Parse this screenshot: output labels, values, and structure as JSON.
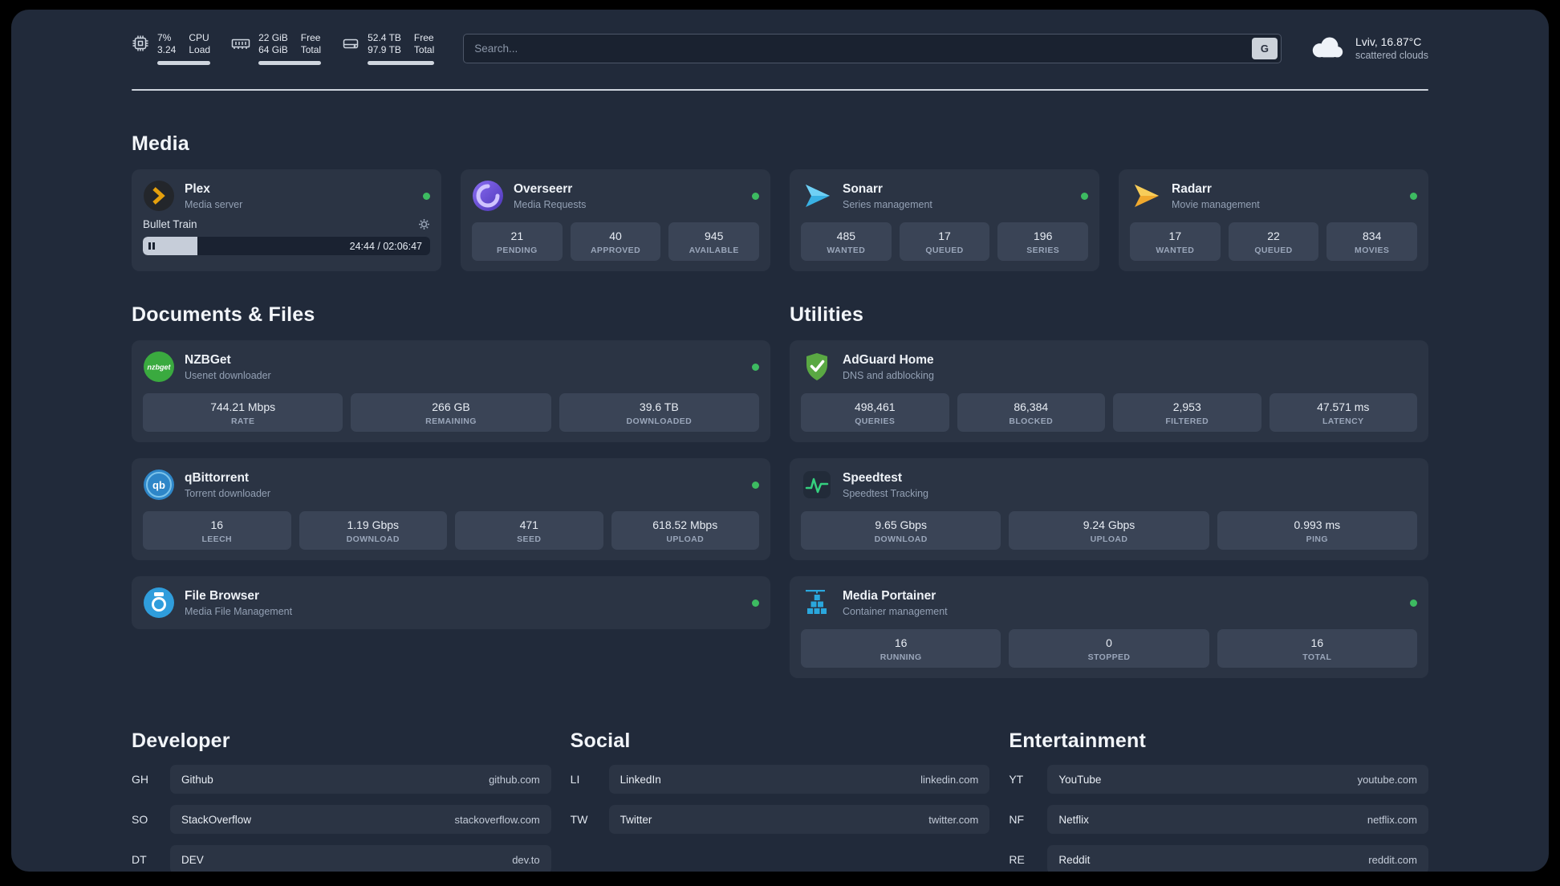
{
  "colors": {
    "background": "#212a3a",
    "card": "#2b3444",
    "tile": "#3a4456",
    "status_online": "#3dbb61",
    "plex_accent": "#e5a00d"
  },
  "topbar": {
    "cpu": {
      "icon": "cpu-icon",
      "value_top": "7%",
      "value_bottom": "3.24",
      "label_top": "CPU",
      "label_bottom": "Load"
    },
    "memory": {
      "icon": "memory-icon",
      "value_top": "22 GiB",
      "value_bottom": "64 GiB",
      "label_top": "Free",
      "label_bottom": "Total"
    },
    "disk": {
      "icon": "disk-icon",
      "value_top": "52.4 TB",
      "value_bottom": "97.9 TB",
      "label_top": "Free",
      "label_bottom": "Total"
    },
    "search": {
      "placeholder": "Search...",
      "shortcut": "G"
    },
    "weather": {
      "icon": "cloud-icon",
      "location": "Lviv, 16.87°C",
      "condition": "scattered clouds"
    }
  },
  "media": {
    "title": "Media",
    "plex": {
      "icon": "plex-icon",
      "name": "Plex",
      "subtitle": "Media server",
      "status": "online",
      "now_playing": "Bullet Train",
      "time": "24:44 / 02:06:47",
      "progress_percent": 19
    },
    "overseerr": {
      "icon": "overseerr-icon",
      "name": "Overseerr",
      "subtitle": "Media Requests",
      "status": "online",
      "stats": [
        {
          "value": "21",
          "label": "PENDING"
        },
        {
          "value": "40",
          "label": "APPROVED"
        },
        {
          "value": "945",
          "label": "AVAILABLE"
        }
      ]
    },
    "sonarr": {
      "icon": "sonarr-icon",
      "name": "Sonarr",
      "subtitle": "Series management",
      "status": "online",
      "stats": [
        {
          "value": "485",
          "label": "WANTED"
        },
        {
          "value": "17",
          "label": "QUEUED"
        },
        {
          "value": "196",
          "label": "SERIES"
        }
      ]
    },
    "radarr": {
      "icon": "radarr-icon",
      "name": "Radarr",
      "subtitle": "Movie management",
      "status": "online",
      "stats": [
        {
          "value": "17",
          "label": "WANTED"
        },
        {
          "value": "22",
          "label": "QUEUED"
        },
        {
          "value": "834",
          "label": "MOVIES"
        }
      ]
    }
  },
  "documents": {
    "title": "Documents & Files",
    "nzbget": {
      "icon": "nzbget-icon",
      "name": "NZBGet",
      "subtitle": "Usenet downloader",
      "status": "online",
      "stats": [
        {
          "value": "744.21 Mbps",
          "label": "RATE"
        },
        {
          "value": "266 GB",
          "label": "REMAINING"
        },
        {
          "value": "39.6 TB",
          "label": "DOWNLOADED"
        }
      ]
    },
    "qbittorrent": {
      "icon": "qbittorrent-icon",
      "name": "qBittorrent",
      "subtitle": "Torrent downloader",
      "status": "online",
      "stats": [
        {
          "value": "16",
          "label": "LEECH"
        },
        {
          "value": "1.19 Gbps",
          "label": "DOWNLOAD"
        },
        {
          "value": "471",
          "label": "SEED"
        },
        {
          "value": "618.52 Mbps",
          "label": "UPLOAD"
        }
      ]
    },
    "filebrowser": {
      "icon": "filebrowser-icon",
      "name": "File Browser",
      "subtitle": "Media File Management",
      "status": "online"
    }
  },
  "utilities": {
    "title": "Utilities",
    "adguard": {
      "icon": "adguard-icon",
      "name": "AdGuard Home",
      "subtitle": "DNS and adblocking",
      "stats": [
        {
          "value": "498,461",
          "label": "QUERIES"
        },
        {
          "value": "86,384",
          "label": "BLOCKED"
        },
        {
          "value": "2,953",
          "label": "FILTERED"
        },
        {
          "value": "47.571 ms",
          "label": "LATENCY"
        }
      ]
    },
    "speedtest": {
      "icon": "speedtest-icon",
      "name": "Speedtest",
      "subtitle": "Speedtest Tracking",
      "stats": [
        {
          "value": "9.65 Gbps",
          "label": "DOWNLOAD"
        },
        {
          "value": "9.24 Gbps",
          "label": "UPLOAD"
        },
        {
          "value": "0.993 ms",
          "label": "PING"
        }
      ]
    },
    "portainer": {
      "icon": "portainer-icon",
      "name": "Media Portainer",
      "subtitle": "Container management",
      "status": "online",
      "stats": [
        {
          "value": "16",
          "label": "RUNNING"
        },
        {
          "value": "0",
          "label": "STOPPED"
        },
        {
          "value": "16",
          "label": "TOTAL"
        }
      ]
    }
  },
  "links": {
    "developer": {
      "title": "Developer",
      "items": [
        {
          "abbr": "GH",
          "name": "Github",
          "url": "github.com"
        },
        {
          "abbr": "SO",
          "name": "StackOverflow",
          "url": "stackoverflow.com"
        },
        {
          "abbr": "DT",
          "name": "DEV",
          "url": "dev.to"
        }
      ]
    },
    "social": {
      "title": "Social",
      "items": [
        {
          "abbr": "LI",
          "name": "LinkedIn",
          "url": "linkedin.com"
        },
        {
          "abbr": "TW",
          "name": "Twitter",
          "url": "twitter.com"
        }
      ]
    },
    "entertainment": {
      "title": "Entertainment",
      "items": [
        {
          "abbr": "YT",
          "name": "YouTube",
          "url": "youtube.com"
        },
        {
          "abbr": "NF",
          "name": "Netflix",
          "url": "netflix.com"
        },
        {
          "abbr": "RE",
          "name": "Reddit",
          "url": "reddit.com"
        }
      ]
    }
  }
}
